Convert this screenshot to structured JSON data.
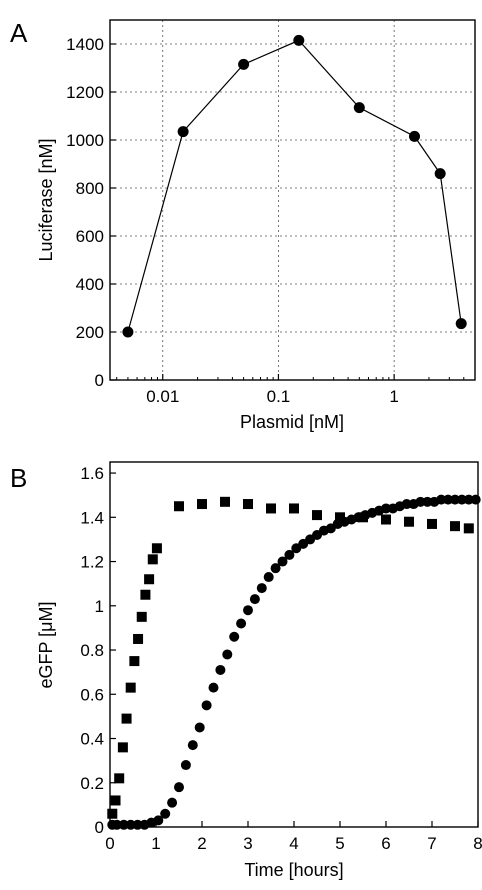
{
  "chart_data": [
    {
      "panel": "A",
      "type": "line",
      "xlabel": "Plasmid [nM]",
      "ylabel": "Luciferase [nM]",
      "xscale": "log",
      "xlim": [
        0.0035,
        5
      ],
      "ylim": [
        0,
        1500
      ],
      "xticks": [
        0.01,
        0.1,
        1
      ],
      "xtick_labels": [
        "0.01",
        "0.1",
        "1"
      ],
      "yticks": [
        0,
        200,
        400,
        600,
        800,
        1000,
        1200,
        1400
      ],
      "ytick_labels": [
        "0",
        "200",
        "400",
        "600",
        "800",
        "1000",
        "1200",
        "1400"
      ],
      "grid": true,
      "series": [
        {
          "marker": "circle",
          "color": "#000000",
          "x": [
            0.005,
            0.015,
            0.05,
            0.15,
            0.5,
            1.5,
            2.5,
            3.8
          ],
          "y": [
            200,
            1035,
            1315,
            1415,
            1135,
            1015,
            860,
            235
          ]
        }
      ]
    },
    {
      "panel": "B",
      "type": "scatter",
      "xlabel": "Time [hours]",
      "ylabel": "eGFP [μM]",
      "xlim": [
        0,
        8
      ],
      "ylim": [
        0,
        1.65
      ],
      "xticks": [
        0,
        1,
        2,
        3,
        4,
        5,
        6,
        7,
        8
      ],
      "xtick_labels": [
        "0",
        "1",
        "2",
        "3",
        "4",
        "5",
        "6",
        "7",
        "8"
      ],
      "yticks": [
        0,
        0.2,
        0.4,
        0.6,
        0.8,
        1,
        1.2,
        1.4,
        1.6
      ],
      "ytick_labels": [
        "0",
        "0.2",
        "0.4",
        "0.6",
        "0.8",
        "1",
        "1.2",
        "1.4",
        "1.6"
      ],
      "grid": false,
      "series": [
        {
          "marker": "square",
          "color": "#000000",
          "x": [
            0.05,
            0.12,
            0.2,
            0.28,
            0.36,
            0.45,
            0.53,
            0.61,
            0.69,
            0.77,
            0.85,
            0.93,
            1.02,
            1.5,
            2.0,
            2.5,
            3.0,
            3.5,
            4.0,
            4.5,
            5.0,
            5.5,
            6.0,
            6.5,
            7.0,
            7.5,
            7.8
          ],
          "y": [
            0.06,
            0.12,
            0.22,
            0.36,
            0.49,
            0.63,
            0.75,
            0.85,
            0.95,
            1.05,
            1.12,
            1.21,
            1.26,
            1.45,
            1.46,
            1.47,
            1.46,
            1.44,
            1.44,
            1.41,
            1.4,
            1.4,
            1.39,
            1.38,
            1.37,
            1.36,
            1.35
          ]
        },
        {
          "marker": "circle",
          "color": "#000000",
          "x": [
            0.05,
            0.15,
            0.3,
            0.45,
            0.6,
            0.75,
            0.9,
            1.05,
            1.2,
            1.35,
            1.5,
            1.65,
            1.8,
            1.95,
            2.1,
            2.25,
            2.4,
            2.55,
            2.7,
            2.85,
            3.0,
            3.15,
            3.3,
            3.45,
            3.6,
            3.75,
            3.9,
            4.05,
            4.2,
            4.35,
            4.5,
            4.65,
            4.8,
            4.95,
            5.1,
            5.25,
            5.4,
            5.55,
            5.7,
            5.85,
            6.0,
            6.15,
            6.3,
            6.45,
            6.6,
            6.75,
            6.9,
            7.05,
            7.2,
            7.35,
            7.5,
            7.65,
            7.8,
            7.95
          ],
          "y": [
            0.01,
            0.01,
            0.01,
            0.01,
            0.01,
            0.01,
            0.02,
            0.03,
            0.06,
            0.11,
            0.18,
            0.28,
            0.37,
            0.45,
            0.55,
            0.63,
            0.71,
            0.78,
            0.86,
            0.92,
            0.98,
            1.03,
            1.08,
            1.13,
            1.17,
            1.2,
            1.23,
            1.26,
            1.28,
            1.3,
            1.32,
            1.34,
            1.35,
            1.37,
            1.38,
            1.39,
            1.4,
            1.41,
            1.42,
            1.43,
            1.44,
            1.44,
            1.45,
            1.46,
            1.46,
            1.47,
            1.47,
            1.47,
            1.48,
            1.48,
            1.48,
            1.48,
            1.48,
            1.48
          ]
        }
      ]
    }
  ]
}
